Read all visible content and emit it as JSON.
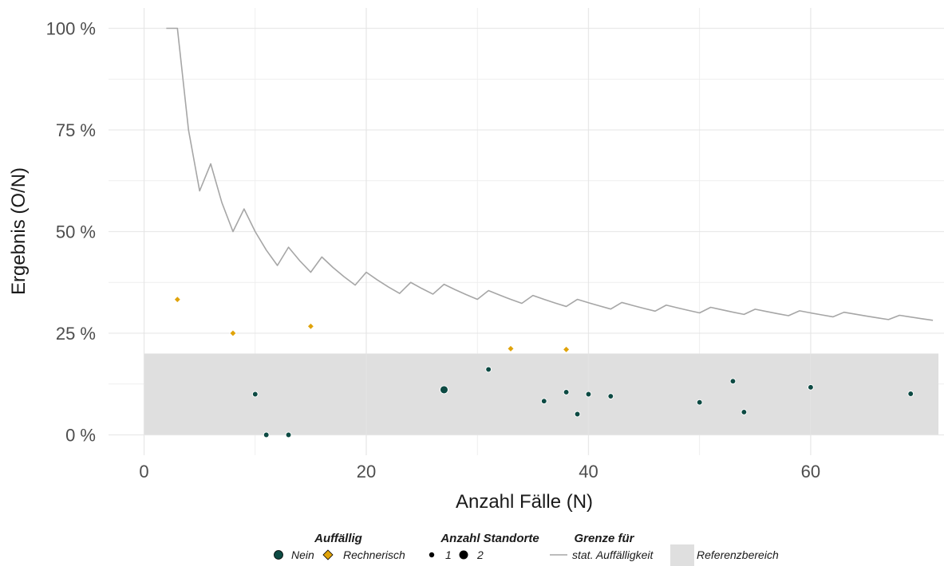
{
  "chart_data": {
    "type": "scatter",
    "title": "",
    "xlabel": "Anzahl Fälle (N)",
    "ylabel": "Ergebnis (O/N)",
    "xlim": [
      -3.2,
      72
    ],
    "ylim": [
      -0.05,
      1.05
    ],
    "x_ticks": [
      0,
      20,
      40,
      60
    ],
    "y_ticks": [
      0,
      0.25,
      0.5,
      0.75,
      1.0
    ],
    "y_tick_labels": [
      "0 %",
      "25 %",
      "50 %",
      "75 %",
      "100 %"
    ],
    "grid": true,
    "reference_range": {
      "xmin": 0,
      "xmax": 71.5,
      "ymin": 0,
      "ymax": 0.2,
      "color": "#dfdfdf"
    },
    "threshold_line": {
      "name": "stat. Auffälligkeit",
      "color": "#a6a6a6",
      "points": [
        [
          2,
          1.0
        ],
        [
          3,
          1.0
        ],
        [
          4,
          0.75
        ],
        [
          5,
          0.6
        ],
        [
          6,
          0.6667
        ],
        [
          7,
          0.5714
        ],
        [
          8,
          0.5
        ],
        [
          9,
          0.5556
        ],
        [
          10,
          0.5
        ],
        [
          11,
          0.4545
        ],
        [
          12,
          0.4167
        ],
        [
          13,
          0.4615
        ],
        [
          14,
          0.4286
        ],
        [
          15,
          0.4
        ],
        [
          16,
          0.4375
        ],
        [
          17,
          0.4118
        ],
        [
          18,
          0.3889
        ],
        [
          19,
          0.3684
        ],
        [
          20,
          0.4
        ],
        [
          21,
          0.381
        ],
        [
          22,
          0.3636
        ],
        [
          23,
          0.3478
        ],
        [
          24,
          0.375
        ],
        [
          25,
          0.36
        ],
        [
          26,
          0.3462
        ],
        [
          27,
          0.3704
        ],
        [
          28,
          0.3571
        ],
        [
          29,
          0.3448
        ],
        [
          30,
          0.3333
        ],
        [
          31,
          0.3548
        ],
        [
          32,
          0.3438
        ],
        [
          33,
          0.3333
        ],
        [
          34,
          0.3235
        ],
        [
          35,
          0.3429
        ],
        [
          36,
          0.3333
        ],
        [
          37,
          0.3243
        ],
        [
          38,
          0.3158
        ],
        [
          39,
          0.3333
        ],
        [
          40,
          0.325
        ],
        [
          41,
          0.3171
        ],
        [
          42,
          0.3095
        ],
        [
          43,
          0.3256
        ],
        [
          44,
          0.3182
        ],
        [
          45,
          0.3111
        ],
        [
          46,
          0.3043
        ],
        [
          47,
          0.3191
        ],
        [
          48,
          0.3125
        ],
        [
          49,
          0.3061
        ],
        [
          50,
          0.3
        ],
        [
          51,
          0.3137
        ],
        [
          52,
          0.3077
        ],
        [
          53,
          0.3019
        ],
        [
          54,
          0.2963
        ],
        [
          55,
          0.3091
        ],
        [
          56,
          0.3036
        ],
        [
          57,
          0.2982
        ],
        [
          58,
          0.2931
        ],
        [
          59,
          0.3051
        ],
        [
          60,
          0.3
        ],
        [
          61,
          0.2951
        ],
        [
          62,
          0.2903
        ],
        [
          63,
          0.3016
        ],
        [
          64,
          0.2969
        ],
        [
          65,
          0.2923
        ],
        [
          66,
          0.2879
        ],
        [
          67,
          0.2836
        ],
        [
          68,
          0.2941
        ],
        [
          69,
          0.2899
        ],
        [
          70,
          0.2857
        ],
        [
          71,
          0.2817
        ]
      ]
    },
    "points": [
      {
        "x": 3,
        "y": 0.333,
        "category": "Rechnerisch",
        "standorte": 1
      },
      {
        "x": 8,
        "y": 0.25,
        "category": "Rechnerisch",
        "standorte": 1
      },
      {
        "x": 15,
        "y": 0.267,
        "category": "Rechnerisch",
        "standorte": 1
      },
      {
        "x": 33,
        "y": 0.212,
        "category": "Rechnerisch",
        "standorte": 1
      },
      {
        "x": 38,
        "y": 0.21,
        "category": "Rechnerisch",
        "standorte": 1
      },
      {
        "x": 10,
        "y": 0.1,
        "category": "Nein",
        "standorte": 1
      },
      {
        "x": 11,
        "y": 0.0,
        "category": "Nein",
        "standorte": 1
      },
      {
        "x": 13,
        "y": 0.0,
        "category": "Nein",
        "standorte": 1
      },
      {
        "x": 27,
        "y": 0.111,
        "category": "Nein",
        "standorte": 2
      },
      {
        "x": 31,
        "y": 0.161,
        "category": "Nein",
        "standorte": 1
      },
      {
        "x": 36,
        "y": 0.083,
        "category": "Nein",
        "standorte": 1
      },
      {
        "x": 38,
        "y": 0.105,
        "category": "Nein",
        "standorte": 1
      },
      {
        "x": 39,
        "y": 0.051,
        "category": "Nein",
        "standorte": 1
      },
      {
        "x": 40,
        "y": 0.1,
        "category": "Nein",
        "standorte": 1
      },
      {
        "x": 42,
        "y": 0.095,
        "category": "Nein",
        "standorte": 1
      },
      {
        "x": 50,
        "y": 0.08,
        "category": "Nein",
        "standorte": 1
      },
      {
        "x": 53,
        "y": 0.132,
        "category": "Nein",
        "standorte": 1
      },
      {
        "x": 54,
        "y": 0.056,
        "category": "Nein",
        "standorte": 1
      },
      {
        "x": 60,
        "y": 0.117,
        "category": "Nein",
        "standorte": 1
      },
      {
        "x": 69,
        "y": 0.101,
        "category": "Nein",
        "standorte": 1
      }
    ],
    "colors": {
      "Nein": "#0d4a43",
      "Rechnerisch": "#e0a30a"
    },
    "legend": {
      "position": "bottom",
      "auffaellig_title": "Auffällig",
      "auffaellig_items": [
        "Nein",
        "Rechnerisch"
      ],
      "standorte_title": "Anzahl Standorte",
      "standorte_items": [
        "1",
        "2"
      ],
      "grenze_title": "Grenze für",
      "grenze_line_label": "stat. Auffälligkeit",
      "grenze_box_label": "Referenzbereich"
    }
  }
}
